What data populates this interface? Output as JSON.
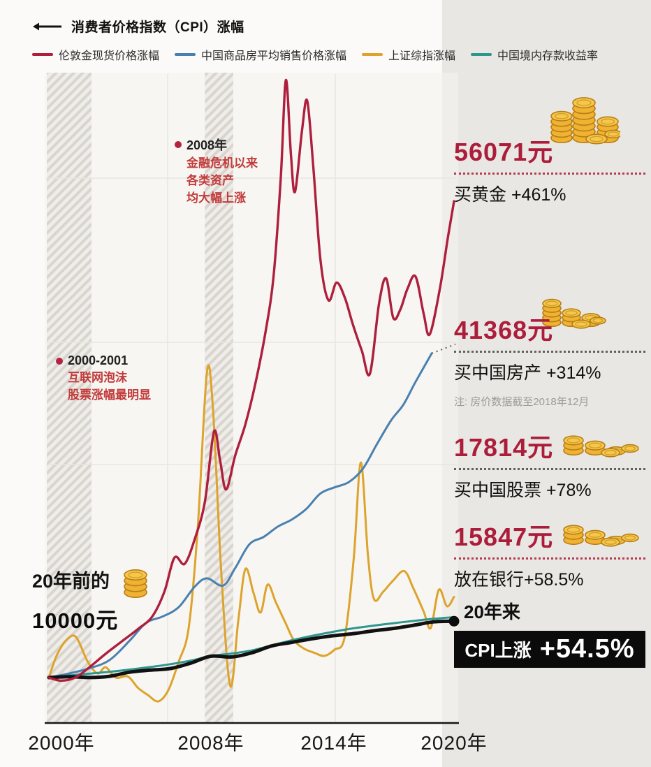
{
  "legend": {
    "cpi": {
      "label": "消费者价格指数（CPI）涨幅",
      "color": "#111111"
    },
    "items": [
      {
        "label": "伦敦金现货价格涨幅",
        "color": "#ad1f3d"
      },
      {
        "label": "中国商品房平均销售价格涨幅",
        "color": "#4a80b0"
      },
      {
        "label": "上证综指涨幅",
        "color": "#dda32c"
      },
      {
        "label": "中国境内存款收益率",
        "color": "#2e968f"
      }
    ]
  },
  "annotations": {
    "crisis": {
      "title": "2008年",
      "line1": "金融危机以来",
      "line2": "各类资产",
      "line3": "均大幅上涨"
    },
    "dotcom": {
      "title": "2000-2001",
      "line1": "互联网泡沫",
      "line2": "股票涨幅最明显"
    },
    "origin": {
      "line1": "20年前的",
      "line2": "10000元"
    }
  },
  "axis": {
    "ticks": [
      "2000年",
      "2008年",
      "2014年",
      "2020年"
    ]
  },
  "panel": {
    "gold": {
      "value": "56071元",
      "label": "买黄金 +461%"
    },
    "housing": {
      "value": "41368元",
      "label": "买中国房产 +314%",
      "note": "注: 房价数据截至2018年12月"
    },
    "stocks": {
      "value": "17814元",
      "label": "买中国股票 +78%"
    },
    "bank": {
      "value": "15847元",
      "label": "放在银行+58.5%"
    },
    "cpi": {
      "prefix": "20年来",
      "badge_label": "CPI上涨",
      "badge_value": "+54.5%"
    }
  },
  "chart_data": {
    "type": "line",
    "x_ticks": [
      "2000年",
      "2008年",
      "2014年",
      "2020年"
    ],
    "x_range": [
      2000,
      2020
    ],
    "baseline_value": 10000,
    "y_range": [
      7000,
      68000
    ],
    "grid": true,
    "legend_position": "top",
    "highlight_bands": [
      {
        "from": 1999.9,
        "to": 2002.1,
        "note": "互联网泡沫"
      },
      {
        "from": 2007.7,
        "to": 2009.1,
        "note": "金融危机"
      }
    ],
    "series": [
      {
        "id": "cpi",
        "name": "消费者价格指数（CPI）涨幅",
        "color": "#111111",
        "width": 5,
        "z": 4,
        "end_dot": true,
        "final_value": 15450,
        "final_pct": "+54.5%",
        "points": [
          [
            2000,
            10000
          ],
          [
            2001,
            10090
          ],
          [
            2002,
            10010
          ],
          [
            2003,
            10130
          ],
          [
            2004,
            10530
          ],
          [
            2005,
            10720
          ],
          [
            2006,
            10880
          ],
          [
            2007,
            11400
          ],
          [
            2008,
            12070
          ],
          [
            2009,
            11990
          ],
          [
            2010,
            12390
          ],
          [
            2011,
            13060
          ],
          [
            2012,
            13410
          ],
          [
            2013,
            13760
          ],
          [
            2014,
            14040
          ],
          [
            2015,
            14240
          ],
          [
            2016,
            14520
          ],
          [
            2017,
            14750
          ],
          [
            2018,
            15060
          ],
          [
            2019,
            15390
          ],
          [
            2020,
            15450
          ]
        ]
      },
      {
        "id": "gold",
        "name": "伦敦金现货价格涨幅",
        "color": "#ad1f3d",
        "width": 3.4,
        "z": 5,
        "final_value": 56071,
        "final_pct": "+461%",
        "points": [
          [
            2000,
            10000
          ],
          [
            2000.6,
            9700
          ],
          [
            2001.3,
            10000
          ],
          [
            2002,
            11000
          ],
          [
            2002.8,
            12300
          ],
          [
            2003.6,
            13500
          ],
          [
            2004.4,
            14700
          ],
          [
            2005.1,
            15900
          ],
          [
            2005.7,
            18300
          ],
          [
            2006.2,
            21600
          ],
          [
            2006.7,
            21000
          ],
          [
            2007.2,
            23400
          ],
          [
            2007.7,
            27000
          ],
          [
            2008.15,
            33800
          ],
          [
            2008.45,
            31000
          ],
          [
            2008.75,
            28200
          ],
          [
            2009.2,
            31500
          ],
          [
            2009.7,
            34500
          ],
          [
            2010.2,
            38500
          ],
          [
            2010.7,
            43500
          ],
          [
            2011.1,
            49000
          ],
          [
            2011.45,
            58500
          ],
          [
            2011.7,
            67800
          ],
          [
            2011.95,
            60500
          ],
          [
            2012.15,
            57000
          ],
          [
            2012.5,
            63000
          ],
          [
            2012.75,
            65800
          ],
          [
            2013.05,
            59500
          ],
          [
            2013.4,
            50500
          ],
          [
            2013.8,
            46500
          ],
          [
            2014.2,
            48200
          ],
          [
            2014.6,
            46800
          ],
          [
            2015,
            44200
          ],
          [
            2015.45,
            41600
          ],
          [
            2015.85,
            39400
          ],
          [
            2016.3,
            46200
          ],
          [
            2016.65,
            48600
          ],
          [
            2017,
            44800
          ],
          [
            2017.35,
            45600
          ],
          [
            2017.7,
            47600
          ],
          [
            2018.1,
            48800
          ],
          [
            2018.5,
            45200
          ],
          [
            2018.8,
            43200
          ],
          [
            2019.3,
            47600
          ],
          [
            2019.7,
            52600
          ],
          [
            2020,
            56071
          ]
        ]
      },
      {
        "id": "housing",
        "name": "中国商品房平均销售价格涨幅",
        "color": "#4a80b0",
        "width": 3,
        "z": 2,
        "dotted_extension": true,
        "final_value": 41368,
        "final_pct": "+314%",
        "points": [
          [
            2000,
            10000
          ],
          [
            2001,
            10400
          ],
          [
            2002,
            10900
          ],
          [
            2003,
            11700
          ],
          [
            2004,
            13600
          ],
          [
            2004.8,
            15300
          ],
          [
            2005.6,
            15900
          ],
          [
            2006.4,
            16800
          ],
          [
            2007.2,
            18800
          ],
          [
            2007.8,
            19600
          ],
          [
            2008.6,
            18900
          ],
          [
            2009.2,
            20600
          ],
          [
            2009.9,
            22900
          ],
          [
            2010.6,
            23600
          ],
          [
            2011.3,
            24600
          ],
          [
            2012,
            25300
          ],
          [
            2012.7,
            26300
          ],
          [
            2013.4,
            27800
          ],
          [
            2014.1,
            28400
          ],
          [
            2014.8,
            28900
          ],
          [
            2015.5,
            30200
          ],
          [
            2016.2,
            32600
          ],
          [
            2016.9,
            34900
          ],
          [
            2017.5,
            36400
          ],
          [
            2018.1,
            38600
          ],
          [
            2018.9,
            41368
          ]
        ]
      },
      {
        "id": "stocks",
        "name": "上证综指涨幅",
        "color": "#dda32c",
        "width": 3,
        "z": 1,
        "final_value": 17814,
        "final_pct": "+78%",
        "points": [
          [
            2000,
            10000
          ],
          [
            2000.4,
            12200
          ],
          [
            2000.9,
            13700
          ],
          [
            2001.35,
            13900
          ],
          [
            2001.9,
            11600
          ],
          [
            2002.4,
            10400
          ],
          [
            2002.8,
            11000
          ],
          [
            2003.3,
            10000
          ],
          [
            2003.9,
            10100
          ],
          [
            2004.4,
            9000
          ],
          [
            2004.9,
            8300
          ],
          [
            2005.4,
            7700
          ],
          [
            2005.9,
            8800
          ],
          [
            2006.4,
            11500
          ],
          [
            2006.9,
            14800
          ],
          [
            2007.35,
            24500
          ],
          [
            2007.8,
            39500
          ],
          [
            2008.1,
            36000
          ],
          [
            2008.5,
            20500
          ],
          [
            2008.95,
            9200
          ],
          [
            2009.35,
            15500
          ],
          [
            2009.7,
            20500
          ],
          [
            2010.1,
            18200
          ],
          [
            2010.45,
            16300
          ],
          [
            2010.8,
            19000
          ],
          [
            2011.2,
            17300
          ],
          [
            2011.7,
            15200
          ],
          [
            2012.1,
            13600
          ],
          [
            2012.6,
            12800
          ],
          [
            2013.1,
            12400
          ],
          [
            2013.6,
            12100
          ],
          [
            2014.1,
            12700
          ],
          [
            2014.6,
            13900
          ],
          [
            2015.05,
            21500
          ],
          [
            2015.4,
            30800
          ],
          [
            2015.75,
            21800
          ],
          [
            2016.05,
            17600
          ],
          [
            2016.5,
            18300
          ],
          [
            2017,
            19400
          ],
          [
            2017.55,
            20300
          ],
          [
            2018,
            18600
          ],
          [
            2018.5,
            16400
          ],
          [
            2018.85,
            14800
          ],
          [
            2019.25,
            18500
          ],
          [
            2019.65,
            16900
          ],
          [
            2020,
            17814
          ]
        ]
      },
      {
        "id": "deposit",
        "name": "中国境内存款收益率",
        "color": "#2e968f",
        "width": 3,
        "z": 3,
        "final_value": 15847,
        "final_pct": "+58.5%",
        "points": [
          [
            2000,
            10000
          ],
          [
            2001,
            10200
          ],
          [
            2002,
            10380
          ],
          [
            2003,
            10560
          ],
          [
            2004,
            10780
          ],
          [
            2005,
            11020
          ],
          [
            2006,
            11300
          ],
          [
            2007,
            11640
          ],
          [
            2008,
            12080
          ],
          [
            2009,
            12320
          ],
          [
            2010,
            12620
          ],
          [
            2011,
            13120
          ],
          [
            2012,
            13620
          ],
          [
            2013,
            14040
          ],
          [
            2014,
            14420
          ],
          [
            2015,
            14760
          ],
          [
            2016,
            15020
          ],
          [
            2017,
            15260
          ],
          [
            2018,
            15480
          ],
          [
            2019,
            15690
          ],
          [
            2020,
            15847
          ]
        ]
      }
    ]
  }
}
